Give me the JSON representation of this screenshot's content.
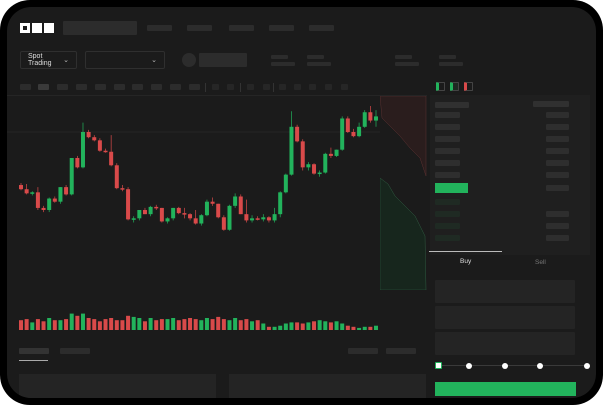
{
  "brand": {
    "logo": "OKX"
  },
  "toolbar": {
    "market_selector": "Spot Trading"
  },
  "trade_panel": {
    "tabs": [
      "Buy",
      "Sell"
    ],
    "active_tab": "Buy",
    "slider_percent": 0
  },
  "colors": {
    "up": "#22b35c",
    "down": "#d94a4a",
    "background": "#1b1b1b"
  },
  "icons": [
    "chevron-down-icon",
    "orderbook-both-icon",
    "orderbook-bids-icon",
    "orderbook-asks-icon"
  ],
  "chart_data": {
    "type": "candlestick",
    "grid": false,
    "candles": [
      [
        64,
        66,
        59,
        60
      ],
      [
        60,
        65,
        55,
        56
      ],
      [
        56,
        58,
        54,
        57
      ],
      [
        57,
        62,
        40,
        42
      ],
      [
        42,
        44,
        38,
        40
      ],
      [
        40,
        52,
        38,
        51
      ],
      [
        51,
        53,
        47,
        48
      ],
      [
        48,
        62,
        46,
        62
      ],
      [
        62,
        64,
        54,
        55
      ],
      [
        55,
        90,
        54,
        90
      ],
      [
        90,
        92,
        80,
        81
      ],
      [
        81,
        124,
        80,
        115
      ],
      [
        115,
        117,
        109,
        110
      ],
      [
        110,
        112,
        106,
        107
      ],
      [
        107,
        109,
        96,
        97
      ],
      [
        97,
        99,
        95,
        96
      ],
      [
        96,
        112,
        82,
        83
      ],
      [
        83,
        85,
        60,
        61
      ],
      [
        61,
        64,
        58,
        60
      ],
      [
        60,
        62,
        30,
        31
      ],
      [
        31,
        34,
        28,
        32
      ],
      [
        32,
        40,
        30,
        40
      ],
      [
        40,
        42,
        36,
        36
      ],
      [
        36,
        44,
        34,
        43
      ],
      [
        43,
        45,
        40,
        42
      ],
      [
        42,
        42,
        28,
        29
      ],
      [
        29,
        33,
        27,
        32
      ],
      [
        32,
        42,
        30,
        42
      ],
      [
        42,
        43,
        36,
        37
      ],
      [
        37,
        42,
        32,
        36
      ],
      [
        36,
        37,
        30,
        32
      ],
      [
        32,
        40,
        26,
        27
      ],
      [
        27,
        36,
        25,
        35
      ],
      [
        35,
        50,
        34,
        48
      ],
      [
        48,
        52,
        44,
        46
      ],
      [
        46,
        46,
        32,
        33
      ],
      [
        33,
        35,
        20,
        21
      ],
      [
        21,
        45,
        20,
        44
      ],
      [
        44,
        56,
        42,
        53
      ],
      [
        53,
        55,
        36,
        36
      ],
      [
        36,
        50,
        28,
        30
      ],
      [
        30,
        35,
        28,
        32
      ],
      [
        32,
        34,
        30,
        31
      ],
      [
        31,
        36,
        29,
        33
      ],
      [
        33,
        34,
        28,
        30
      ],
      [
        30,
        42,
        28,
        36
      ],
      [
        36,
        58,
        33,
        57
      ],
      [
        57,
        75,
        56,
        74
      ],
      [
        74,
        135,
        73,
        120
      ],
      [
        120,
        122,
        105,
        106
      ],
      [
        106,
        108,
        78,
        81
      ],
      [
        81,
        86,
        78,
        84
      ],
      [
        84,
        85,
        74,
        75
      ],
      [
        75,
        78,
        72,
        76
      ],
      [
        76,
        95,
        75,
        94
      ],
      [
        94,
        100,
        90,
        92
      ],
      [
        92,
        98,
        91,
        98
      ],
      [
        98,
        130,
        97,
        128
      ],
      [
        128,
        130,
        114,
        115
      ],
      [
        115,
        118,
        110,
        111
      ],
      [
        111,
        124,
        110,
        120
      ],
      [
        120,
        136,
        119,
        134
      ],
      [
        134,
        140,
        124,
        126
      ],
      [
        126,
        136,
        120,
        130
      ]
    ],
    "volume": [
      8,
      9,
      6,
      9,
      7,
      10,
      8,
      8,
      9,
      14,
      12,
      14,
      10,
      9,
      7,
      9,
      10,
      8,
      8,
      12,
      11,
      10,
      7,
      10,
      8,
      9,
      9,
      10,
      8,
      9,
      10,
      9,
      8,
      10,
      9,
      11,
      9,
      8,
      10,
      8,
      9,
      7,
      8,
      5,
      2,
      2,
      3,
      5,
      6,
      6,
      5,
      6,
      7,
      8,
      7,
      6,
      7,
      5,
      3,
      2,
      1,
      2,
      2,
      3
    ]
  }
}
